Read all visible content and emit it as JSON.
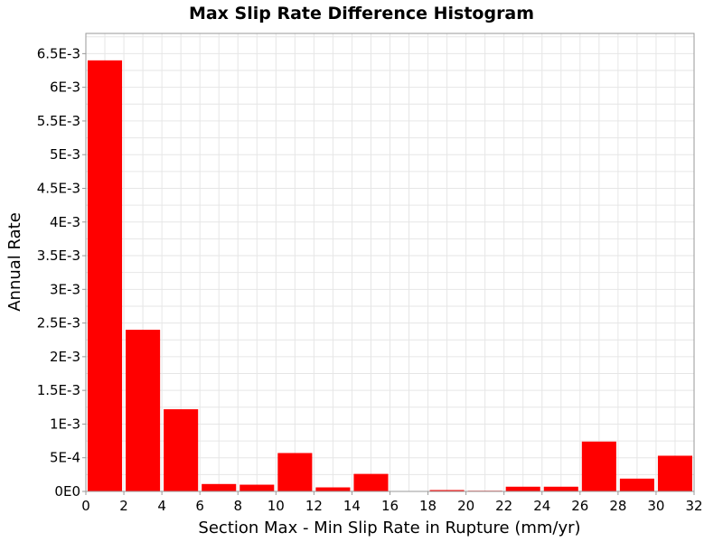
{
  "chart_data": {
    "type": "bar",
    "title": "Max Slip Rate Difference Histogram",
    "xlabel": "Section Max - Min Slip Rate in Rupture (mm/yr)",
    "ylabel": "Annual Rate",
    "xlim": [
      0,
      32
    ],
    "ylim": [
      0,
      0.0068
    ],
    "grid": true,
    "legend": "none",
    "bar_color": "#ff0000",
    "bin_width": 2,
    "x_ticks": [
      0,
      2,
      4,
      6,
      8,
      10,
      12,
      14,
      16,
      18,
      20,
      22,
      24,
      26,
      28,
      30,
      32
    ],
    "x_tick_labels": [
      "0",
      "2",
      "4",
      "6",
      "8",
      "10",
      "12",
      "14",
      "16",
      "18",
      "20",
      "22",
      "24",
      "26",
      "28",
      "30",
      "32"
    ],
    "y_ticks": [
      0,
      0.0005,
      0.001,
      0.0015,
      0.002,
      0.0025,
      0.003,
      0.0035,
      0.004,
      0.0045,
      0.005,
      0.0055,
      0.006,
      0.0065
    ],
    "y_tick_labels": [
      "0E0",
      "5E-4",
      "1E-3",
      "1.5E-3",
      "2E-3",
      "2.5E-3",
      "3E-3",
      "3.5E-3",
      "4E-3",
      "4.5E-3",
      "5E-3",
      "5.5E-3",
      "6E-3",
      "6.5E-3"
    ],
    "bins": [
      0,
      2,
      4,
      6,
      8,
      10,
      12,
      14,
      16,
      18,
      20,
      22,
      24,
      26,
      28,
      30
    ],
    "values": [
      0.0064,
      0.0024,
      0.00122,
      0.00011,
      0.0001,
      0.00057,
      6e-05,
      0.00026,
      0.0,
      2e-05,
      1e-05,
      7e-05,
      7e-05,
      0.00074,
      0.00019,
      0.00053
    ]
  }
}
